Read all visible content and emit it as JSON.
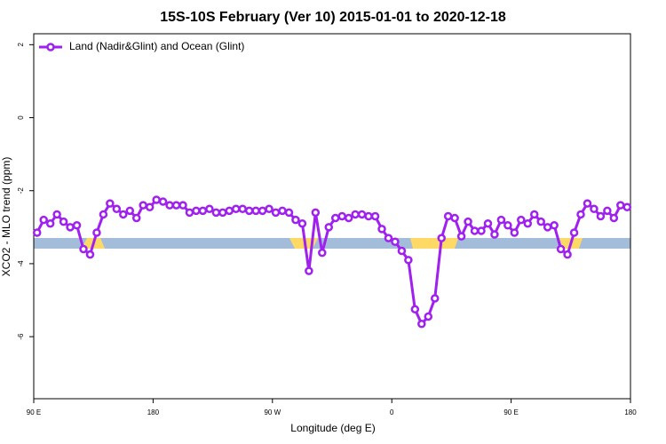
{
  "chart_data": {
    "type": "line",
    "title": "15S-10S February (Ver 10)   2015-01-01 to 2020-12-18",
    "x_label": "Longitude (deg E)",
    "y_label": "XCO2 - MLO trend (ppm)",
    "xlim": [
      90,
      540
    ],
    "ylim": [
      -7.7,
      2.3
    ],
    "xticks": [
      {
        "value": 90,
        "label": "90 E"
      },
      180,
      {
        "value": 270,
        "label": "90 W"
      },
      {
        "value": 360,
        "label": "0"
      },
      {
        "value": 450,
        "label": "90 E"
      },
      {
        "value": 540,
        "label": "180"
      }
    ],
    "yticks": [
      2,
      0,
      -2,
      -4,
      -6
    ],
    "legend": "top-left",
    "x": [
      92.5,
      97.5,
      102.5,
      107.5,
      112.5,
      117.5,
      122.5,
      127.5,
      132.5,
      137.5,
      142.5,
      147.5,
      152.5,
      157.5,
      162.5,
      167.5,
      172.5,
      177.5,
      182.5,
      187.5,
      192.5,
      197.5,
      202.5,
      207.5,
      212.5,
      217.5,
      222.5,
      227.5,
      232.5,
      237.5,
      242.5,
      247.5,
      252.5,
      257.5,
      262.5,
      267.5,
      272.5,
      277.5,
      282.5,
      287.5,
      292.5,
      297.5,
      302.5,
      307.5,
      312.5,
      317.5,
      322.5,
      327.5,
      332.5,
      337.5,
      342.5,
      347.5,
      352.5,
      357.5,
      362.5,
      367.5,
      372.5,
      377.5,
      382.5,
      387.5,
      392.5,
      397.5,
      402.5,
      407.5,
      412.5,
      417.5,
      422.5,
      427.5,
      432.5,
      437.5,
      442.5,
      447.5,
      452.5,
      457.5,
      462.5,
      467.5,
      472.5,
      477.5,
      482.5,
      487.5,
      492.5,
      497.5,
      502.5,
      507.5,
      512.5,
      517.5,
      522.5,
      527.5,
      532.5,
      537.5
    ],
    "series": [
      {
        "name": "Land (Nadir&Glint) and Ocean (Glint)",
        "color": "#a020f0",
        "values": [
          -3.15,
          -2.8,
          -2.9,
          -2.65,
          -2.85,
          -3.0,
          -2.95,
          -3.6,
          -3.75,
          -3.15,
          -2.65,
          -2.35,
          -2.5,
          -2.65,
          -2.55,
          -2.75,
          -2.4,
          -2.45,
          -2.25,
          -2.3,
          -2.4,
          -2.4,
          -2.4,
          -2.6,
          -2.55,
          -2.55,
          -2.5,
          -2.6,
          -2.6,
          -2.55,
          -2.5,
          -2.5,
          -2.55,
          -2.55,
          -2.55,
          -2.5,
          -2.6,
          -2.55,
          -2.6,
          -2.8,
          -2.9,
          -4.2,
          -2.6,
          -3.7,
          -3.0,
          -2.75,
          -2.7,
          -2.75,
          -2.65,
          -2.65,
          -2.7,
          -2.7,
          -3.05,
          -3.3,
          -3.4,
          -3.65,
          -3.9,
          -5.25,
          -5.65,
          -5.45,
          -4.95,
          -3.3,
          -2.7,
          -2.75,
          -3.25,
          -2.85,
          -3.1,
          -3.1,
          -2.9,
          -3.2,
          -2.8,
          -2.95,
          -3.15,
          -2.8,
          -2.9,
          -2.65,
          -2.85,
          -3.0,
          -2.95,
          -3.6,
          -3.75,
          -3.15,
          -2.65,
          -2.35,
          -2.5,
          -2.7,
          -2.55,
          -2.75,
          -2.4,
          -2.45
        ]
      }
    ]
  }
}
